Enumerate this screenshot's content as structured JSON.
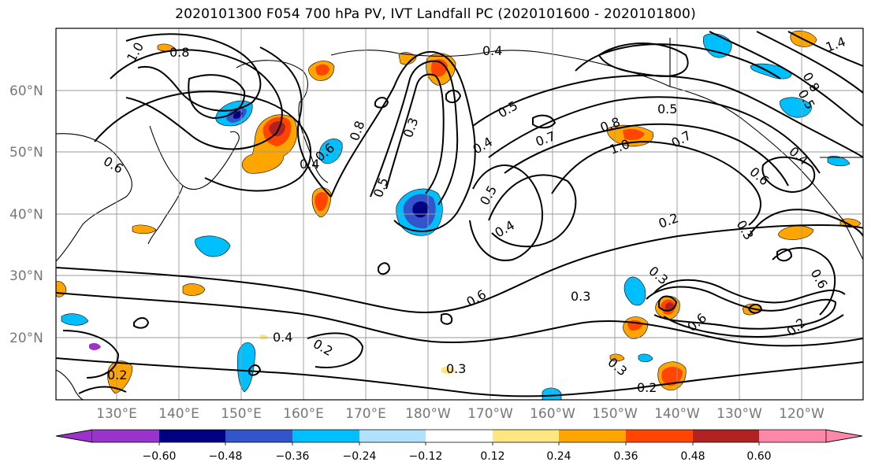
{
  "title": "2020101300 F054 700 hPa PV, IVT Landfall PC (2020101600 - 2020101800)",
  "longitude_labels": [
    "130°E",
    "140°E",
    "150°E",
    "160°E",
    "170°E",
    "180°W",
    "170°W",
    "160°W",
    "150°W",
    "140°W",
    "130°W",
    "120°W"
  ],
  "latitude_labels": [
    "20°N",
    "30°N",
    "40°N",
    "50°N",
    "60°N"
  ],
  "colorbar": {
    "colors": [
      "#9933cc",
      "#000080",
      "#3355cc",
      "#00bfff",
      "#b0e2ff",
      "#ffffff",
      "#ffe680",
      "#ffa500",
      "#ff4500",
      "#b22222",
      "#ff88aa"
    ],
    "tick_labels": [
      "−0.60",
      "−0.48",
      "−0.36",
      "−0.24",
      "−0.12",
      "0.12",
      "0.24",
      "0.36",
      "0.48",
      "0.60"
    ],
    "extend": "both"
  },
  "contour_labels": [
    "1.0",
    "0.8",
    "0.6",
    "0.4",
    "0.3",
    "0.5",
    "0.7",
    "0.4",
    "0.5",
    "0.8",
    "0.6",
    "0.7",
    "0.8",
    "1.0",
    "0.5",
    "0.4",
    "0.3",
    "0.2",
    "0.3",
    "0.3",
    "0.5",
    "0.6",
    "0.3",
    "0.2",
    "0.2",
    "0.4",
    "0.2",
    "0.2",
    "0.3",
    "0.6",
    "0.4",
    "0.5",
    "0.6",
    "0.4",
    "0.8",
    "0.6",
    "1.4"
  ]
}
